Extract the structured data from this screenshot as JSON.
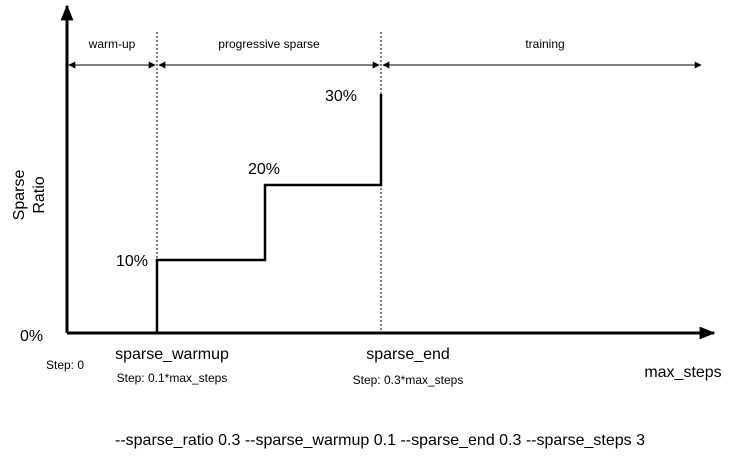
{
  "phases": {
    "warmup": "warm-up",
    "progressive": "progressive sparse",
    "training": "training"
  },
  "y_axis": {
    "label_line1": "Sparse",
    "label_line2": "Ratio",
    "zero_label": "0%"
  },
  "levels": {
    "p10": "10%",
    "p20": "20%",
    "p30": "30%"
  },
  "milestones": {
    "start_step": "Step: 0",
    "warmup_name": "sparse_warmup",
    "warmup_step": "Step: 0.1*max_steps",
    "end_name": "sparse_end",
    "end_step": "Step: 0.3*max_steps",
    "max_steps": "max_steps"
  },
  "command": "--sparse_ratio 0.3 --sparse_warmup 0.1 --sparse_end 0.3 --sparse_steps 3"
}
